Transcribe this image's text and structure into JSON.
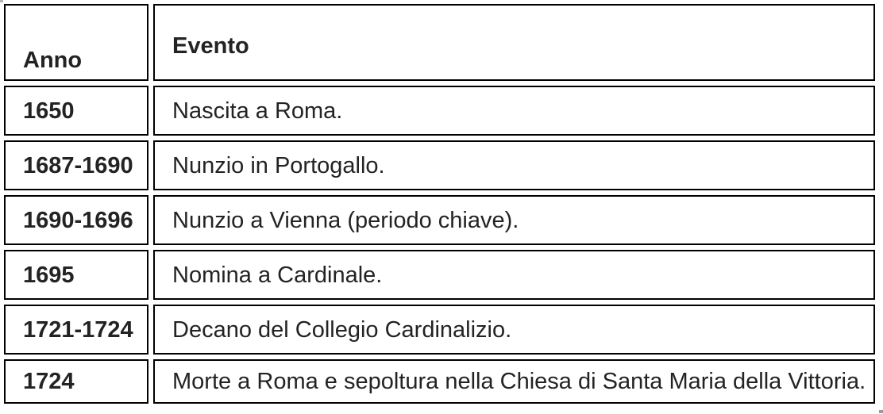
{
  "table": {
    "name": "timeline-anni-eventi",
    "columns": [
      {
        "key": "anno",
        "label": "Anno"
      },
      {
        "key": "evento",
        "label": "Evento"
      }
    ],
    "rows": [
      {
        "anno": "1650",
        "evento": "Nascita a Roma."
      },
      {
        "anno": "1687-1690",
        "evento": "Nunzio in Portogallo."
      },
      {
        "anno": "1690-1696",
        "evento": "Nunzio a Vienna (periodo chiave)."
      },
      {
        "anno": "1695",
        "evento": "Nomina a Cardinale."
      },
      {
        "anno": "1721-1724",
        "evento": "Decano del Collegio Cardinalizio."
      },
      {
        "anno": "1724",
        "evento": "Morte a Roma e sepoltura nella Chiesa di Santa Maria della Vittoria."
      }
    ]
  },
  "colors": {
    "cell_border": "#000000",
    "text": "#232323",
    "background": "#ffffff",
    "corner_mark": "#9a9a9a"
  }
}
